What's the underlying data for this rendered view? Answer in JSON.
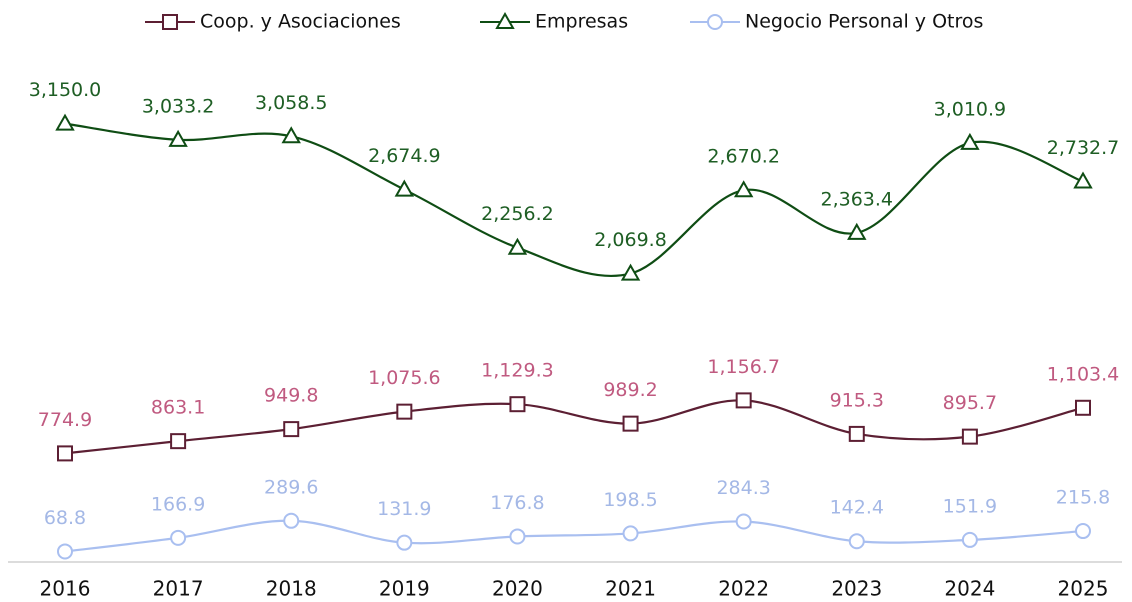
{
  "chart_data": {
    "type": "line",
    "categories": [
      "2016",
      "2017",
      "2018",
      "2019",
      "2020",
      "2021",
      "2022",
      "2023",
      "2024",
      "2025"
    ],
    "ylim": [
      0,
      3500
    ],
    "series": [
      {
        "name": "Coop. y Asociaciones",
        "color": "#5c1f33",
        "label_color": "#c05a80",
        "marker": "square",
        "values": [
          774.9,
          863.1,
          949.8,
          1075.6,
          1129.3,
          989.2,
          1156.7,
          915.3,
          895.7,
          1103.4
        ],
        "value_labels": [
          "774.9",
          "863.1",
          "949.8",
          "1,075.6",
          "1,129.3",
          "989.2",
          "1,156.7",
          "915.3",
          "895.7",
          "1,103.4"
        ]
      },
      {
        "name": "Empresas",
        "color": "#0f4d14",
        "label_color": "#1e5e24",
        "marker": "triangle",
        "values": [
          3150.0,
          3033.2,
          3058.5,
          2674.9,
          2256.2,
          2069.8,
          2670.2,
          2363.4,
          3010.9,
          2732.7
        ],
        "value_labels": [
          "3,150.0",
          "3,033.2",
          "3,058.5",
          "2,674.9",
          "2,256.2",
          "2,069.8",
          "2,670.2",
          "2,363.4",
          "3,010.9",
          "2,732.7"
        ]
      },
      {
        "name": "Negocio Personal y Otros",
        "color": "#a9bff0",
        "label_color": "#a4b8e6",
        "marker": "circle",
        "values": [
          68.8,
          166.9,
          289.6,
          131.9,
          176.8,
          198.5,
          284.3,
          142.4,
          151.9,
          215.8
        ],
        "value_labels": [
          "68.8",
          "166.9",
          "289.6",
          "131.9",
          "176.8",
          "198.5",
          "284.3",
          "142.4",
          "151.9",
          "215.8"
        ]
      }
    ]
  }
}
